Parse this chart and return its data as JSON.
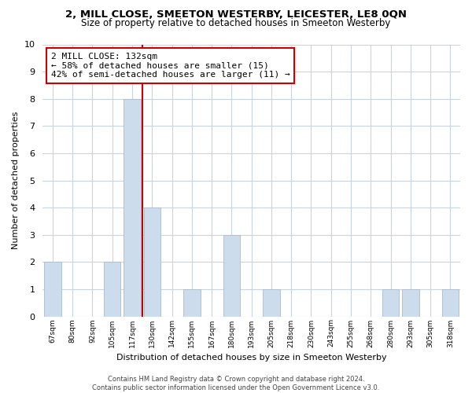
{
  "title": "2, MILL CLOSE, SMEETON WESTERBY, LEICESTER, LE8 0QN",
  "subtitle": "Size of property relative to detached houses in Smeeton Westerby",
  "xlabel": "Distribution of detached houses by size in Smeeton Westerby",
  "ylabel": "Number of detached properties",
  "bar_color": "#ccdcec",
  "bar_edge_color": "#aabbcc",
  "vline_color": "#cc0000",
  "bins": [
    "67sqm",
    "80sqm",
    "92sqm",
    "105sqm",
    "117sqm",
    "130sqm",
    "142sqm",
    "155sqm",
    "167sqm",
    "180sqm",
    "193sqm",
    "205sqm",
    "218sqm",
    "230sqm",
    "243sqm",
    "255sqm",
    "268sqm",
    "280sqm",
    "293sqm",
    "305sqm",
    "318sqm"
  ],
  "heights": [
    2,
    0,
    0,
    2,
    8,
    4,
    0,
    1,
    0,
    3,
    0,
    1,
    0,
    0,
    0,
    0,
    0,
    1,
    1,
    0,
    1
  ],
  "ylim": [
    0,
    10
  ],
  "yticks": [
    0,
    1,
    2,
    3,
    4,
    5,
    6,
    7,
    8,
    9,
    10
  ],
  "annotation_title": "2 MILL CLOSE: 132sqm",
  "annotation_line1": "← 58% of detached houses are smaller (15)",
  "annotation_line2": "42% of semi-detached houses are larger (11) →",
  "footer1": "Contains HM Land Registry data © Crown copyright and database right 2024.",
  "footer2": "Contains public sector information licensed under the Open Government Licence v3.0.",
  "background_color": "#ffffff",
  "grid_color": "#c8d4e0"
}
